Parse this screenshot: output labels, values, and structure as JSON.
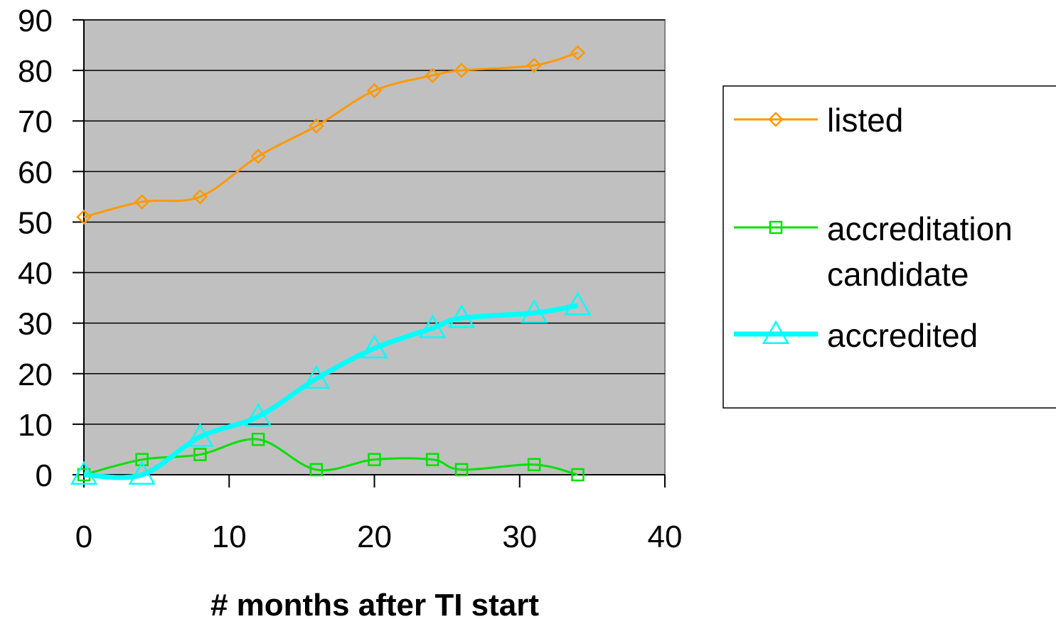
{
  "chart_data": {
    "type": "line",
    "xlabel": "# months after TI start",
    "ylabel": "",
    "xlim": [
      0,
      40
    ],
    "ylim": [
      0,
      90
    ],
    "xticks": [
      0,
      10,
      20,
      30,
      40
    ],
    "yticks": [
      0,
      10,
      20,
      30,
      40,
      50,
      60,
      70,
      80,
      90
    ],
    "grid": "horizontal",
    "plot_background": "#c0c0c0",
    "legend_position": "right",
    "series": [
      {
        "name": "listed",
        "color": "#ff9900",
        "marker": "diamond",
        "x": [
          0,
          4,
          8,
          12,
          16,
          20,
          24,
          26,
          31,
          34
        ],
        "y": [
          51,
          54,
          55,
          63,
          69,
          76,
          79,
          80,
          81,
          83.5
        ]
      },
      {
        "name": "accreditation candidate",
        "legend_lines": [
          "accreditation",
          "candidate"
        ],
        "color": "#00e000",
        "marker": "square",
        "x": [
          0,
          4,
          8,
          12,
          16,
          20,
          24,
          26,
          31,
          34
        ],
        "y": [
          0,
          3,
          4,
          7,
          1,
          3,
          3,
          1,
          2,
          0
        ]
      },
      {
        "name": "accredited",
        "color": "#00ffff",
        "marker": "triangle",
        "x": [
          0,
          4,
          8,
          12,
          16,
          20,
          24,
          26,
          31,
          34
        ],
        "y": [
          0,
          0,
          7.5,
          11.5,
          19,
          25,
          29,
          31,
          32,
          33.5
        ]
      }
    ]
  }
}
